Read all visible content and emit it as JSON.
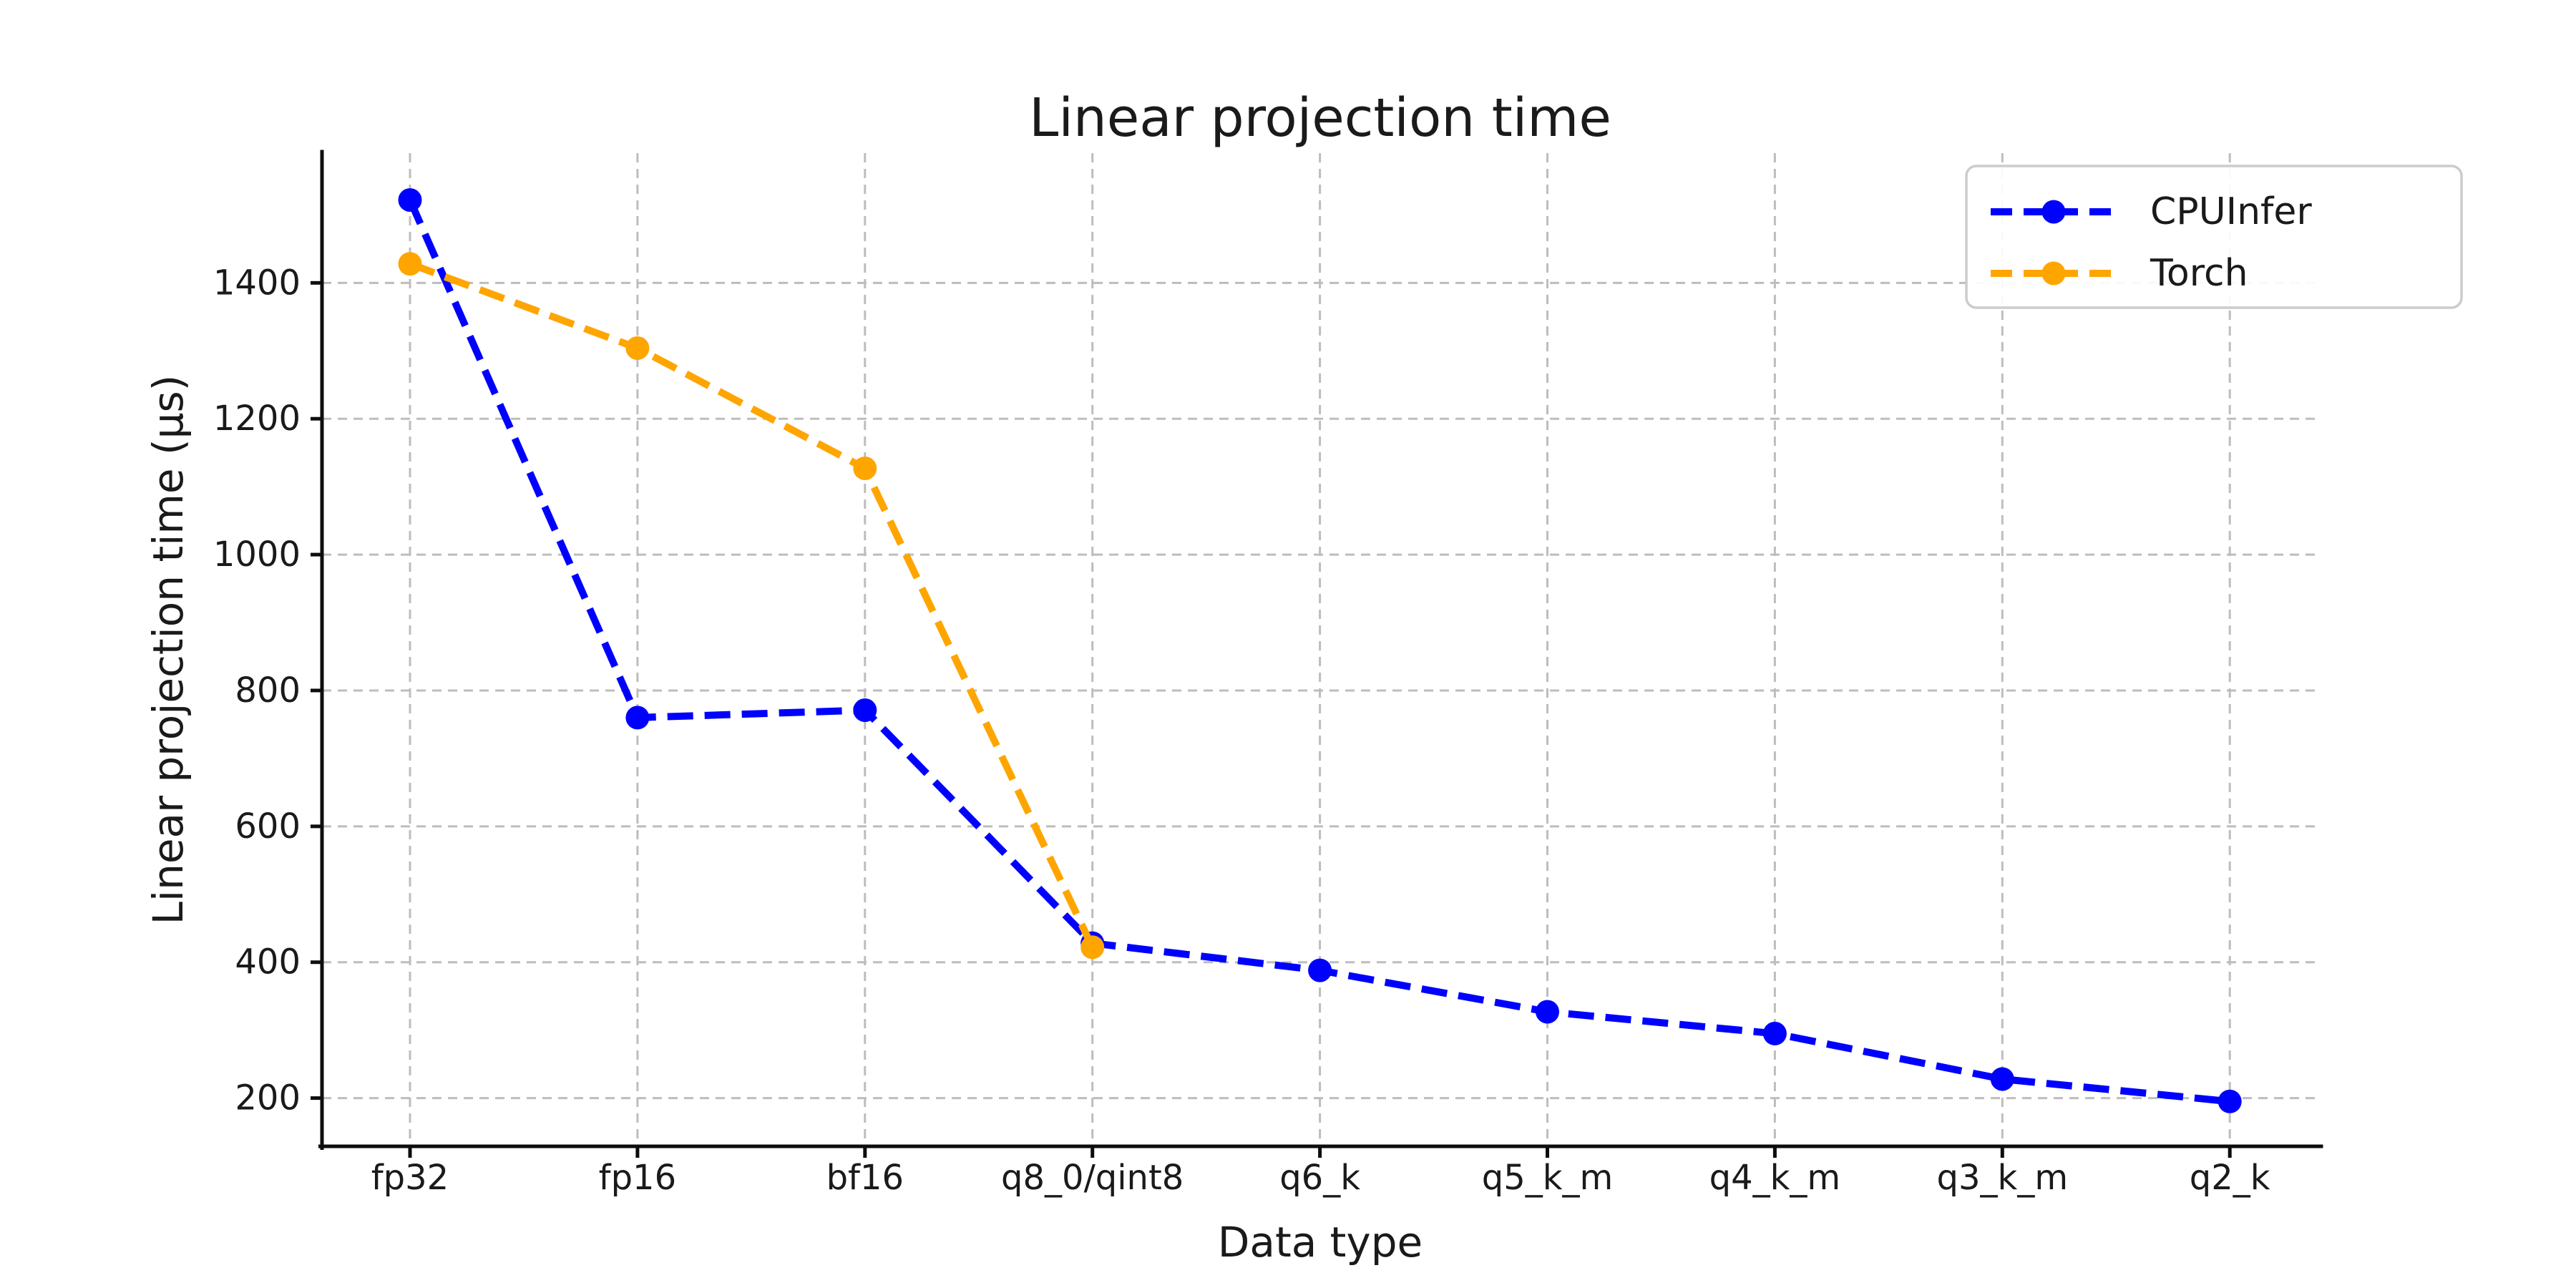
{
  "chart_data": {
    "type": "line",
    "title": "Linear projection time",
    "xlabel": "Data type",
    "ylabel": "Linear projection time (μs)",
    "categories": [
      "fp32",
      "fp16",
      "bf16",
      "q8_0/qint8",
      "q6_k",
      "q5_k_m",
      "q4_k_m",
      "q3_k_m",
      "q2_k"
    ],
    "series": [
      {
        "name": "CPUInfer",
        "color": "#0000ff",
        "values": [
          1522,
          760,
          771,
          428,
          388,
          327,
          295,
          228,
          195
        ]
      },
      {
        "name": "Torch",
        "color": "#ffa500",
        "values": [
          1428,
          1304,
          1127,
          422,
          null,
          null,
          null,
          null,
          null
        ]
      }
    ],
    "yticks": [
      200,
      400,
      600,
      800,
      1000,
      1200,
      1400
    ],
    "ylim": [
      129,
      1591
    ],
    "grid": true,
    "grid_style": "dashed",
    "line_style": "dashed",
    "marker": "circle",
    "legend_position": "upper right",
    "legend_entries": [
      "CPUInfer",
      "Torch"
    ]
  }
}
